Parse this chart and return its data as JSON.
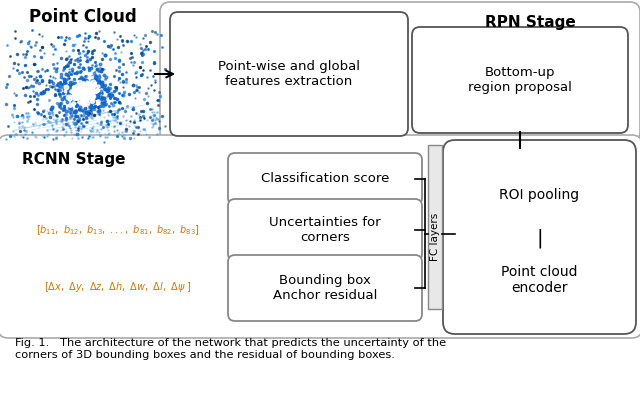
{
  "bg_color": "#ffffff",
  "title_text": "Fig. 1.   The architecture of the network that predicts the uncertainty of the\ncorners of 3D bounding boxes and the residual of bounding boxes.",
  "point_cloud_label": "Point Cloud",
  "rpn_label": "RPN Stage",
  "rcnn_label": "RCNN Stage",
  "box1_text": "Point-wise and global\nfeatures extraction",
  "box2_text": "Bottom-up\nregion proposal",
  "box3_text": "Classification score",
  "box4_text": "Uncertainties for\ncorners",
  "box5_text": "Bounding box\nAnchor residual",
  "box6a_text": "ROI pooling",
  "box6b_text": "|",
  "box6c_text": "Point cloud\nencoder",
  "fc_text": "FC layers",
  "orange_color": "#cc7700"
}
